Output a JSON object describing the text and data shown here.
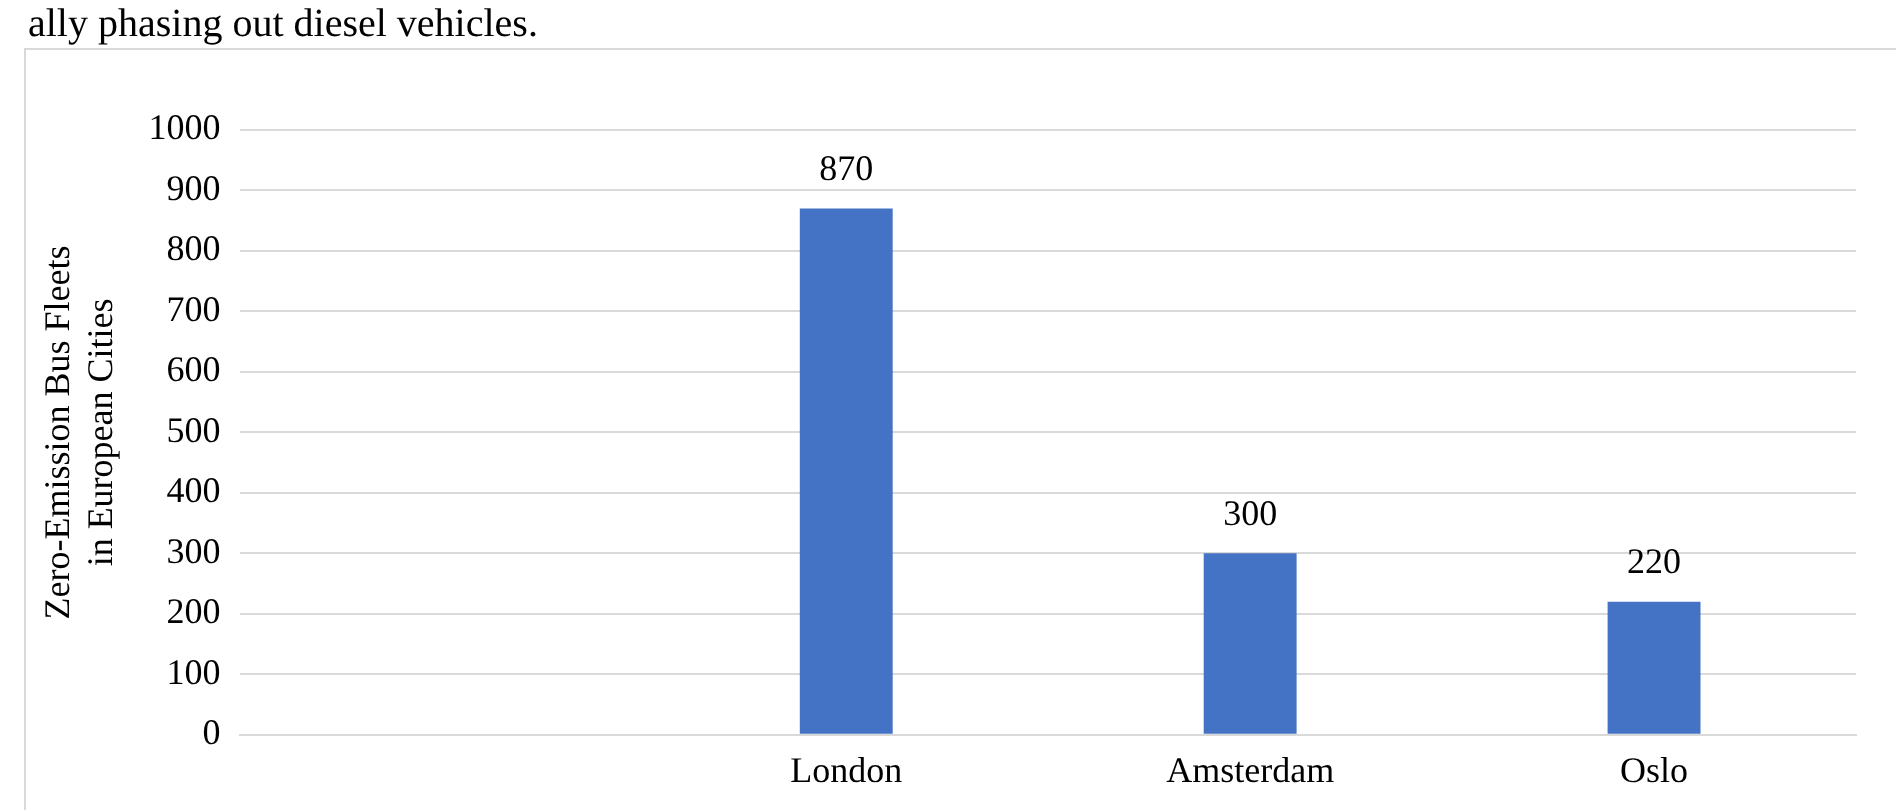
{
  "chart_data": {
    "type": "bar",
    "annotations": [
      "ally phasing out diesel vehicles."
    ],
    "ylabel": "Zero-Emission Bus Fleets in European Cities",
    "categories": [
      null,
      "London",
      "Amsterdam",
      "Oslo"
    ],
    "values": [
      null,
      870,
      300,
      220
    ],
    "color": "#4472c4",
    "ylim": [
      0,
      1000
    ],
    "yticks": [
      0,
      100,
      200,
      300,
      400,
      500,
      600,
      700,
      800,
      900,
      1000
    ],
    "grid": "y",
    "legend": false,
    "data_labels": true
  }
}
